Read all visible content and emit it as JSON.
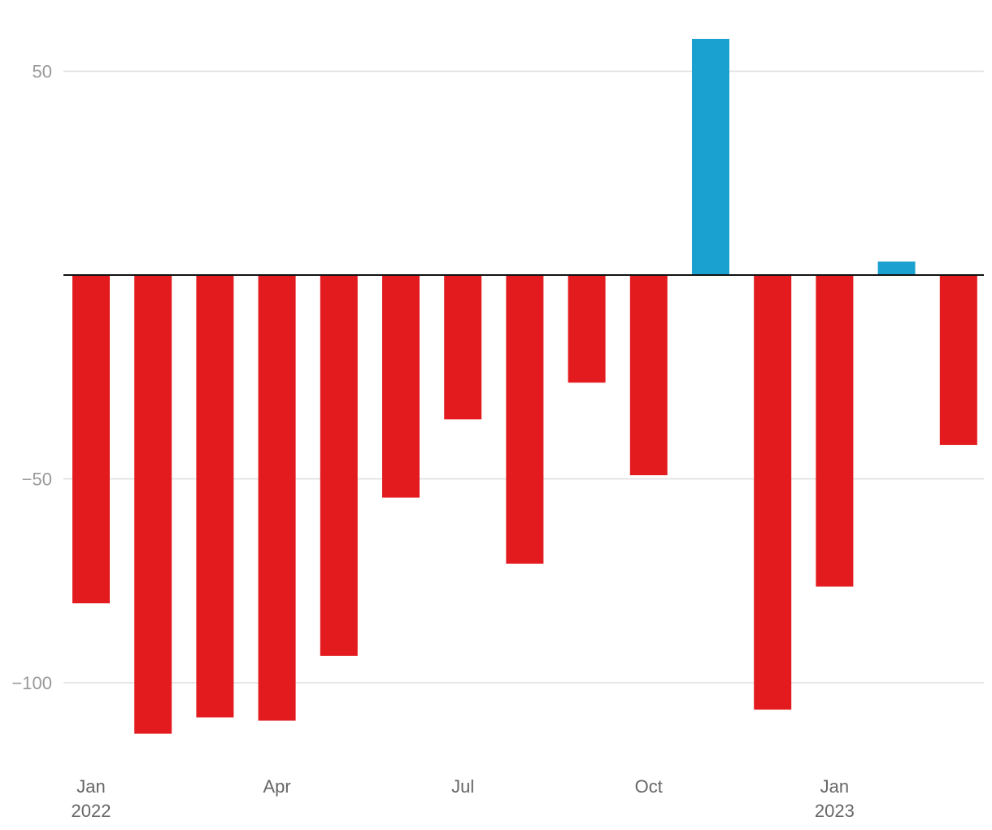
{
  "chart_data": {
    "type": "bar",
    "title": "",
    "xlabel": "",
    "ylabel": "",
    "x": [
      "2022-01",
      "2022-02",
      "2022-03",
      "2022-04",
      "2022-05",
      "2022-06",
      "2022-07",
      "2022-08",
      "2022-09",
      "2022-10",
      "2022-11",
      "2022-12",
      "2023-01",
      "2023-02",
      "2023-03"
    ],
    "values": [
      -80.5,
      -112.5,
      -108.5,
      -109.3,
      -93.4,
      -54.6,
      -35.4,
      -70.8,
      -26.4,
      -49.1,
      57.9,
      -106.6,
      -76.4,
      3.3,
      -41.7
    ],
    "ylim": [
      -118,
      58
    ],
    "y_ticks": [
      {
        "value": 50,
        "label": "50"
      },
      {
        "value": -50,
        "label": "−50"
      },
      {
        "value": -100,
        "label": "−100"
      }
    ],
    "x_ticks": [
      {
        "index": 0,
        "month": "Jan",
        "year": "2022"
      },
      {
        "index": 3,
        "month": "Apr",
        "year": ""
      },
      {
        "index": 6,
        "month": "Jul",
        "year": ""
      },
      {
        "index": 9,
        "month": "Oct",
        "year": ""
      },
      {
        "index": 12,
        "month": "Jan",
        "year": "2023"
      }
    ],
    "grid": true,
    "legend": "none",
    "colors": {
      "positive": "#1ba1cf",
      "negative": "#e31b1f"
    }
  }
}
